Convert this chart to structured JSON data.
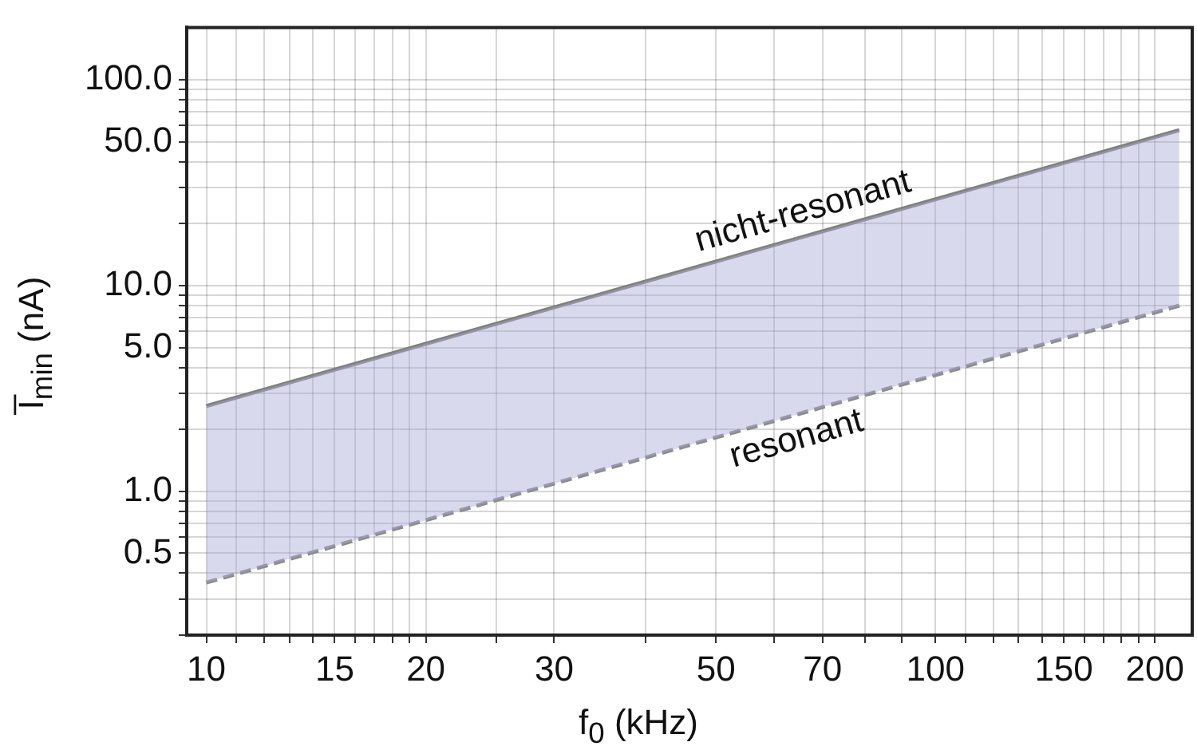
{
  "chart_data": {
    "type": "line",
    "xlabel": "f$_{0}$ (kHz)",
    "ylabel": "I̅$_{min}$ (nA)",
    "x": [
      10,
      216
    ],
    "series": [
      {
        "name": "nicht-resonant",
        "color": "#808080",
        "values": [
          2.6,
          57
        ],
        "line_style": "solid",
        "lower": [
          0.36,
          8.0
        ],
        "upper": [
          2.6,
          57
        ]
      },
      {
        "name": "resonant",
        "color": "#8c8c8c",
        "values": [
          0.36,
          8.0
        ],
        "line_style": "dashed"
      }
    ],
    "log": "xy",
    "xlim": [
      9.4,
      225
    ],
    "ylim": [
      0.2,
      180
    ],
    "xticks": [
      10,
      {
        "value": 11,
        "label": null
      },
      {
        "value": 12,
        "label": null
      },
      {
        "value": 13,
        "label": null
      },
      {
        "value": 14,
        "label": null
      },
      15,
      {
        "value": 16,
        "label": null
      },
      {
        "value": 17,
        "label": null
      },
      {
        "value": 18,
        "label": null
      },
      {
        "value": 19,
        "label": null
      },
      20,
      {
        "value": 25,
        "label": null
      },
      30,
      {
        "value": 40,
        "label": null
      },
      50,
      {
        "value": 60,
        "label": null
      },
      70,
      {
        "value": 80,
        "label": null
      },
      {
        "value": 90,
        "label": null
      },
      100,
      {
        "value": 110,
        "label": null
      },
      {
        "value": 120,
        "label": null
      },
      {
        "value": 130,
        "label": null
      },
      {
        "value": 140,
        "label": null
      },
      150,
      {
        "value": 160,
        "label": null
      },
      {
        "value": 170,
        "label": null
      },
      {
        "value": 180,
        "label": null
      },
      {
        "value": 190,
        "label": null
      },
      200
    ],
    "yticks": [
      {
        "value": 0.2,
        "label": null
      },
      {
        "value": 0.3,
        "label": null
      },
      {
        "value": 0.4,
        "label": null
      },
      {
        "value": 0.5,
        "label": "0.5"
      },
      {
        "value": 0.6,
        "label": null
      },
      {
        "value": 0.7,
        "label": null
      },
      {
        "value": 0.8,
        "label": null
      },
      {
        "value": 0.9,
        "label": null
      },
      {
        "value": 1,
        "label": "1.0"
      },
      {
        "value": 2,
        "label": null
      },
      {
        "value": 3,
        "label": null
      },
      {
        "value": 4,
        "label": null
      },
      {
        "value": 5,
        "label": "5.0"
      },
      {
        "value": 6,
        "label": null
      },
      {
        "value": 7,
        "label": null
      },
      {
        "value": 8,
        "label": null
      },
      {
        "value": 9,
        "label": null
      },
      {
        "value": 10,
        "label": "10.0"
      },
      {
        "value": 20,
        "label": null
      },
      {
        "value": 30,
        "label": null
      },
      {
        "value": 40,
        "label": null
      },
      {
        "value": 50,
        "label": "50.0"
      },
      {
        "value": 60,
        "label": null
      },
      {
        "value": 70,
        "label": null
      },
      {
        "value": 80,
        "label": null
      },
      {
        "value": 90,
        "label": null
      },
      {
        "value": 100,
        "label": "100.0"
      }
    ],
    "grid": true,
    "legend": false
  }
}
